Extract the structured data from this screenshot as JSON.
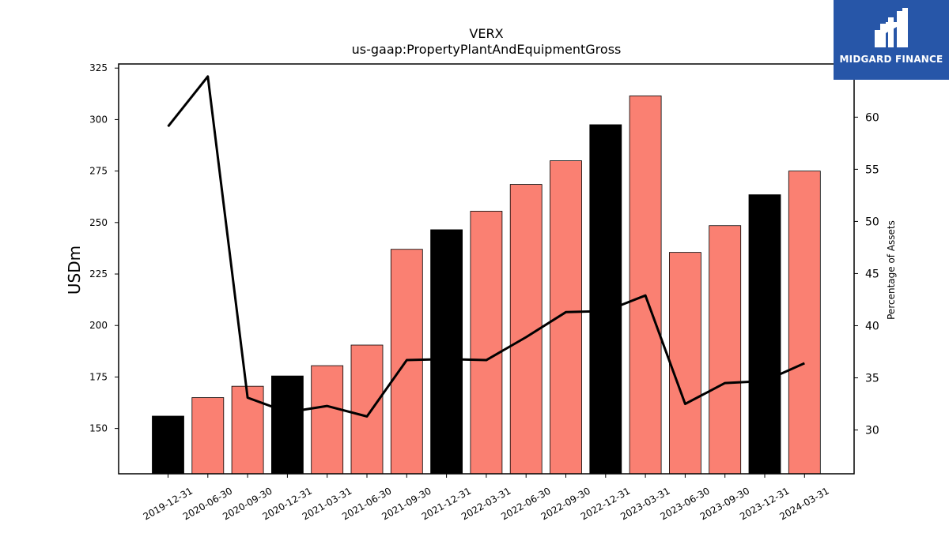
{
  "brand": {
    "name": "MIDGARD FINANCE",
    "logo_icon": "midgard-logo-icon",
    "color": "#2756a8"
  },
  "chart_data": {
    "type": "bar",
    "title": "VERX",
    "subtitle": "us-gaap:PropertyPlantAndEquipmentGross",
    "ylabel": "USDm",
    "y2label": "Percentage of Assets",
    "categories": [
      "2019-12-31",
      "2020-06-30",
      "2020-09-30",
      "2020-12-31",
      "2021-03-31",
      "2021-06-30",
      "2021-09-30",
      "2021-12-31",
      "2022-03-31",
      "2022-06-30",
      "2022-09-30",
      "2022-12-31",
      "2023-03-31",
      "2023-06-30",
      "2023-09-30",
      "2023-12-31",
      "2024-03-31"
    ],
    "values": [
      156,
      165,
      170.5,
      175.5,
      180.5,
      190.5,
      237,
      246.5,
      255.5,
      268.5,
      280,
      297.5,
      311.5,
      235.5,
      248.5,
      263.5,
      275
    ],
    "bar_colors": [
      "#000000",
      "#fa8072",
      "#fa8072",
      "#000000",
      "#fa8072",
      "#fa8072",
      "#fa8072",
      "#000000",
      "#fa8072",
      "#fa8072",
      "#fa8072",
      "#000000",
      "#fa8072",
      "#fa8072",
      "#fa8072",
      "#000000",
      "#fa8072"
    ],
    "line_series": {
      "values": [
        59.1,
        63.9,
        33.1,
        31.7,
        32.3,
        31.3,
        36.7,
        36.8,
        36.7,
        38.9,
        41.3,
        41.4,
        42.9,
        32.5,
        34.5,
        34.7,
        36.4
      ],
      "color": "#000000"
    },
    "ylim": [
      128,
      327
    ],
    "y2lim": [
      25.8,
      65.1
    ],
    "yticks": [
      150,
      175,
      200,
      225,
      250,
      275,
      300,
      325
    ],
    "y2ticks": [
      30,
      35,
      40,
      45,
      50,
      55,
      60
    ],
    "grid": false,
    "legend": "none"
  }
}
